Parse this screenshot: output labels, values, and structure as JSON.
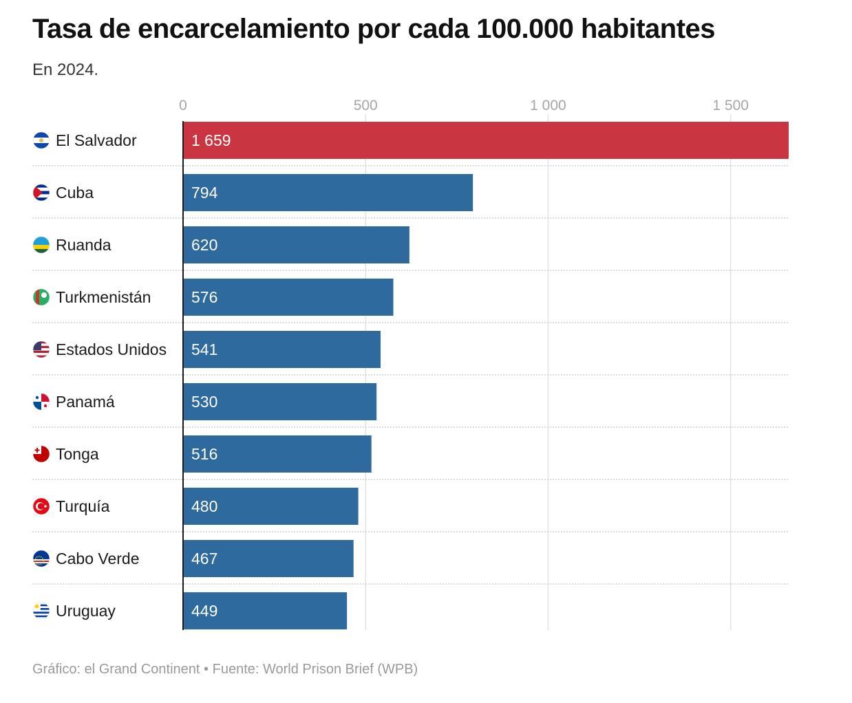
{
  "title": "Tasa de encarcelamiento por cada 100.000 habitantes",
  "subtitle": "En 2024.",
  "footer": {
    "credit": "Gráfico: el Grand Continent",
    "separator": "•",
    "source": "Fuente: World Prison Brief (WPB)"
  },
  "colors": {
    "highlight": "#c93541",
    "bar": "#2e6a9e",
    "grid": "#e3e3e3",
    "axis": "#1a1a1a"
  },
  "chart_data": {
    "type": "bar",
    "orientation": "horizontal",
    "title": "Tasa de encarcelamiento por cada 100.000 habitantes",
    "subtitle": "En 2024.",
    "categories": [
      "El Salvador",
      "Cuba",
      "Ruanda",
      "Turkmenistán",
      "Estados Unidos",
      "Panamá",
      "Tonga",
      "Turquía",
      "Cabo Verde",
      "Uruguay"
    ],
    "values": [
      1659,
      794,
      620,
      576,
      541,
      530,
      516,
      480,
      467,
      449
    ],
    "value_labels": [
      "1 659",
      "794",
      "620",
      "576",
      "541",
      "530",
      "516",
      "480",
      "467",
      "449"
    ],
    "highlight_index": 0,
    "xlim": [
      0,
      1659
    ],
    "xticks": [
      0,
      500,
      1000,
      1500
    ],
    "xtick_labels": [
      "0",
      "500",
      "1 000",
      "1 500"
    ],
    "flag_icons": [
      "el-salvador-flag-icon",
      "cuba-flag-icon",
      "rwanda-flag-icon",
      "turkmenistan-flag-icon",
      "usa-flag-icon",
      "panama-flag-icon",
      "tonga-flag-icon",
      "turkey-flag-icon",
      "cape-verde-flag-icon",
      "uruguay-flag-icon"
    ],
    "grid": true,
    "xlabel": "",
    "ylabel": ""
  }
}
